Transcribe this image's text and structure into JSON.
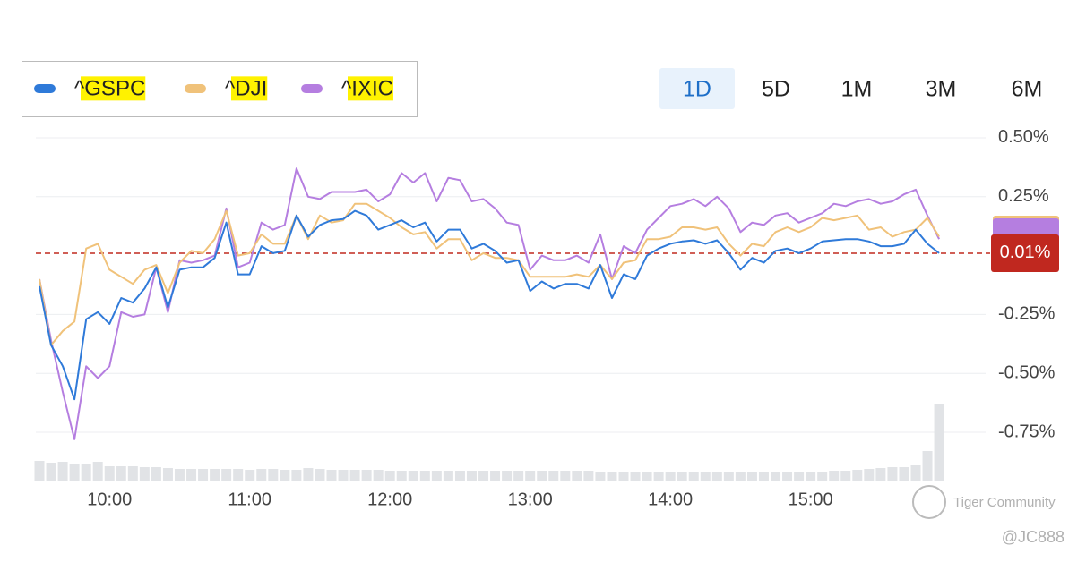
{
  "chart_data": {
    "type": "line",
    "ranges": [
      "1D",
      "5D",
      "1M",
      "3M",
      "6M"
    ],
    "selected_range": 0,
    "categories": [
      null,
      null,
      null,
      null,
      null,
      null,
      "10:00",
      null,
      null,
      null,
      null,
      null,
      null,
      null,
      null,
      null,
      null,
      null,
      "11:00",
      null,
      null,
      null,
      null,
      null,
      null,
      null,
      null,
      null,
      null,
      null,
      "12:00",
      null,
      null,
      null,
      null,
      null,
      null,
      null,
      null,
      null,
      null,
      null,
      "13:00",
      null,
      null,
      null,
      null,
      null,
      null,
      null,
      null,
      null,
      null,
      null,
      "14:00",
      null,
      null,
      null,
      null,
      null,
      null,
      null,
      null,
      null,
      null,
      null,
      "15:00",
      null,
      null,
      null,
      null,
      null,
      null,
      null,
      null,
      null,
      null,
      null
    ],
    "series": [
      {
        "name": "^GSPC",
        "color": "#2f7ad9",
        "values": [
          -0.13,
          -0.38,
          -0.47,
          -0.61,
          -0.27,
          -0.24,
          -0.29,
          -0.18,
          -0.2,
          -0.14,
          -0.05,
          -0.22,
          -0.06,
          -0.05,
          -0.05,
          -0.01,
          0.14,
          -0.08,
          -0.08,
          0.04,
          0.01,
          0.02,
          0.17,
          0.08,
          0.13,
          0.15,
          0.155,
          0.19,
          0.17,
          0.11,
          0.13,
          0.15,
          0.12,
          0.14,
          0.06,
          0.11,
          0.11,
          0.03,
          0.05,
          0.02,
          -0.03,
          -0.02,
          -0.15,
          -0.11,
          -0.14,
          -0.12,
          -0.12,
          -0.14,
          -0.04,
          -0.18,
          -0.08,
          -0.1,
          0,
          0.03,
          0.05,
          0.06,
          0.065,
          0.05,
          0.065,
          0.01,
          -0.06,
          -0.01,
          -0.03,
          0.02,
          0.03,
          0.01,
          0.03,
          0.06,
          0.065,
          0.07,
          0.07,
          0.06,
          0.04,
          0.04,
          0.05,
          0.11,
          0.05,
          0.01
        ]
      },
      {
        "name": "^DJI",
        "color": "#f0c27a",
        "values": [
          -0.1,
          -0.38,
          -0.32,
          -0.28,
          0.03,
          0.05,
          -0.06,
          -0.09,
          -0.12,
          -0.06,
          -0.04,
          -0.16,
          -0.03,
          0.02,
          0.01,
          0.07,
          0.19,
          0,
          0.01,
          0.09,
          0.05,
          0.05,
          0.17,
          0.07,
          0.17,
          0.14,
          0.15,
          0.22,
          0.22,
          0.19,
          0.16,
          0.12,
          0.09,
          0.1,
          0.03,
          0.07,
          0.07,
          -0.02,
          0.01,
          -0.01,
          -0.01,
          -0.02,
          -0.09,
          -0.09,
          -0.09,
          -0.09,
          -0.08,
          -0.09,
          -0.04,
          -0.1,
          -0.03,
          -0.02,
          0.07,
          0.07,
          0.08,
          0.12,
          0.12,
          0.11,
          0.12,
          0.05,
          0,
          0.05,
          0.04,
          0.1,
          0.12,
          0.1,
          0.12,
          0.16,
          0.15,
          0.16,
          0.17,
          0.11,
          0.12,
          0.08,
          0.1,
          0.11,
          0.16,
          0.08
        ]
      },
      {
        "name": "^IXIC",
        "color": "#b57ee0",
        "values": [
          -0.1,
          -0.36,
          -0.58,
          -0.78,
          -0.47,
          -0.52,
          -0.47,
          -0.24,
          -0.26,
          -0.25,
          -0.05,
          -0.24,
          -0.02,
          -0.03,
          -0.02,
          0,
          0.2,
          -0.05,
          -0.03,
          0.14,
          0.11,
          0.13,
          0.37,
          0.25,
          0.24,
          0.27,
          0.27,
          0.27,
          0.28,
          0.23,
          0.26,
          0.35,
          0.31,
          0.35,
          0.23,
          0.33,
          0.32,
          0.23,
          0.24,
          0.2,
          0.14,
          0.13,
          -0.06,
          0,
          -0.02,
          -0.02,
          0,
          -0.03,
          0.09,
          -0.1,
          0.04,
          0.01,
          0.11,
          0.16,
          0.21,
          0.22,
          0.24,
          0.21,
          0.25,
          0.2,
          0.1,
          0.14,
          0.13,
          0.17,
          0.18,
          0.14,
          0.16,
          0.18,
          0.22,
          0.21,
          0.23,
          0.24,
          0.22,
          0.23,
          0.26,
          0.28,
          0.17,
          0.07
        ]
      }
    ],
    "volume": {
      "color": "#e1e3e6",
      "values": [
        22,
        20,
        21,
        19,
        18,
        21,
        16,
        16,
        16,
        15,
        15,
        14,
        13,
        13,
        13,
        13,
        13,
        13,
        12,
        13,
        13,
        12,
        12,
        14,
        13,
        12,
        12,
        12,
        12,
        12,
        11,
        11,
        11,
        11,
        11,
        11,
        11,
        11,
        11,
        11,
        11,
        11,
        11,
        11,
        11,
        11,
        11,
        11,
        10,
        10,
        10,
        10,
        10,
        10,
        10,
        10,
        10,
        10,
        10,
        10,
        10,
        10,
        10,
        10,
        10,
        10,
        10,
        10,
        11,
        11,
        12,
        13,
        14,
        15,
        15,
        17,
        33,
        85
      ]
    },
    "ylim": [
      -0.955,
      0.515
    ],
    "yticks": [
      {
        "value": 0.5,
        "label": "0.50%"
      },
      {
        "value": 0.25,
        "label": "0.25%"
      },
      {
        "value": -0.25,
        "label": "-0.25%"
      },
      {
        "value": -0.5,
        "label": "-0.50%"
      },
      {
        "value": -0.75,
        "label": "-0.75%"
      }
    ],
    "grid": true,
    "reference_line": {
      "value": 0.01,
      "label": "0.01%",
      "color": "#c0281f"
    },
    "watermark": {
      "text": "Tiger Community",
      "handle": "@JC888"
    }
  }
}
